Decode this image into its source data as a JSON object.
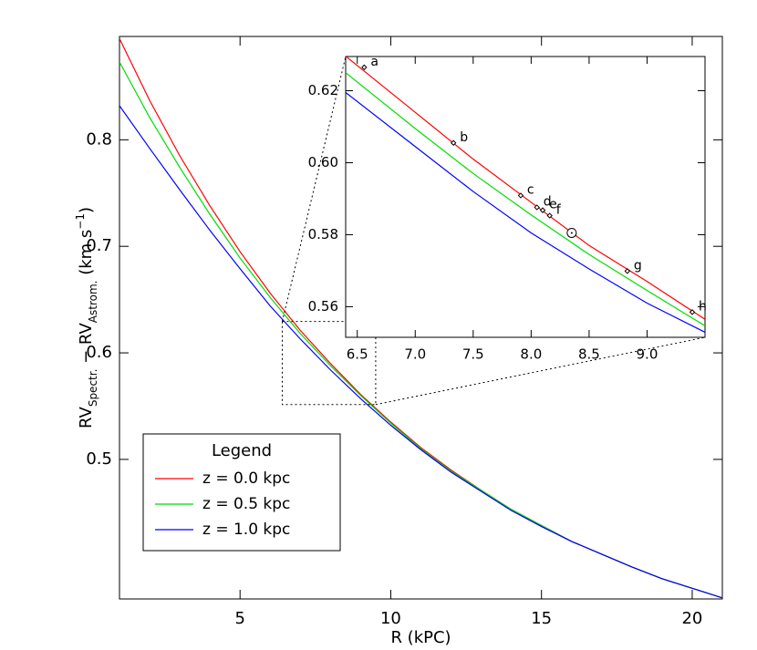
{
  "chart_data": [
    {
      "type": "line",
      "xlabel": "R (kPC)",
      "ylabel": [
        "RV",
        "Spectr.",
        " − RV",
        "Astrom.",
        " (km s",
        "−1",
        ")"
      ],
      "x": [
        1,
        2,
        3,
        4,
        5,
        6,
        7,
        8,
        9,
        10,
        11,
        12,
        13,
        14,
        15,
        16,
        17,
        18,
        19,
        20,
        21
      ],
      "series": [
        {
          "name": "z = 0.0 kpc",
          "color": "#ff0000",
          "values": [
            0.895,
            0.837,
            0.785,
            0.738,
            0.695,
            0.656,
            0.621,
            0.59,
            0.561,
            0.535,
            0.511,
            0.49,
            0.471,
            0.453,
            0.438,
            0.423,
            0.411,
            0.399,
            0.388,
            0.379,
            0.37
          ]
        },
        {
          "name": "z = 0.5 kpc",
          "color": "#00dd00",
          "values": [
            0.873,
            0.821,
            0.774,
            0.73,
            0.689,
            0.652,
            0.618,
            0.588,
            0.56,
            0.534,
            0.51,
            0.489,
            0.471,
            0.453,
            0.438,
            0.423,
            0.411,
            0.399,
            0.388,
            0.379,
            0.37
          ]
        },
        {
          "name": "z = 1.0 kpc",
          "color": "#0000ff",
          "values": [
            0.832,
            0.792,
            0.753,
            0.715,
            0.679,
            0.644,
            0.613,
            0.584,
            0.557,
            0.532,
            0.509,
            0.488,
            0.47,
            0.452,
            0.437,
            0.423,
            0.411,
            0.399,
            0.388,
            0.379,
            0.37
          ]
        }
      ],
      "xlim": [
        1,
        21
      ],
      "ylim": [
        0.369,
        0.897
      ],
      "xticks": [
        5,
        10,
        15,
        20
      ],
      "yticks": [
        0.5,
        0.6,
        0.7,
        0.8
      ],
      "legend_title": "Legend",
      "legend": "lower left"
    },
    {
      "type": "line",
      "x": [
        6.4,
        7.0,
        7.5,
        8.0,
        8.5,
        9.0,
        9.5
      ],
      "series": [
        {
          "color": "#ff0000",
          "values": [
            0.6296,
            0.614,
            0.601,
            0.589,
            0.577,
            0.567,
            0.5565
          ]
        },
        {
          "color": "#00dd00",
          "values": [
            0.625,
            0.6095,
            0.597,
            0.5855,
            0.5745,
            0.5645,
            0.5547
          ]
        },
        {
          "color": "#0000ff",
          "values": [
            0.6195,
            0.6045,
            0.592,
            0.5805,
            0.5705,
            0.561,
            0.5529
          ]
        }
      ],
      "points": [
        {
          "label": "a",
          "x": 6.56,
          "y": 0.6265
        },
        {
          "label": "b",
          "x": 7.33,
          "y": 0.6055
        },
        {
          "label": "c",
          "x": 7.91,
          "y": 0.5909
        },
        {
          "label": "d",
          "x": 8.05,
          "y": 0.5876
        },
        {
          "label": "e",
          "x": 8.1,
          "y": 0.5868
        },
        {
          "label": "f",
          "x": 8.16,
          "y": 0.5853
        },
        {
          "label": "g",
          "x": 8.83,
          "y": 0.5699
        },
        {
          "label": "h",
          "x": 9.39,
          "y": 0.5585
        }
      ],
      "sun": {
        "x": 8.35,
        "y": 0.5805
      },
      "xlim": [
        6.4,
        9.5
      ],
      "ylim": [
        0.5515,
        0.6295
      ],
      "xticks": [
        {
          "value": 6.5,
          "label": "6.5"
        },
        {
          "value": 7.0,
          "label": "7.0"
        },
        {
          "value": 7.5,
          "label": "7.5"
        },
        {
          "value": 8.0,
          "label": "8.0"
        },
        {
          "value": 8.5,
          "label": "8.5"
        },
        {
          "value": 9.0,
          "label": "9.0"
        }
      ],
      "yticks": [
        0.56,
        {
          "value": 0.58,
          "label": "0.58"
        },
        {
          "value": 0.6,
          "label": "0.60"
        },
        0.62
      ]
    }
  ]
}
